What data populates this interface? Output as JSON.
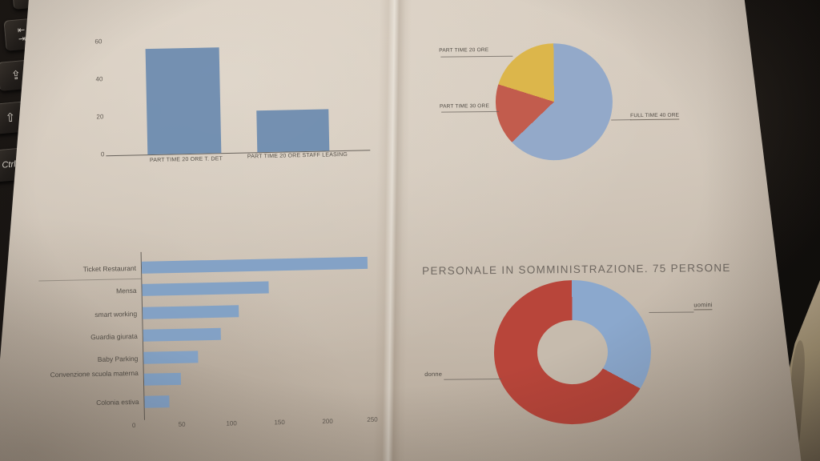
{
  "palette": {
    "paper": "#cdc2b4",
    "background": "#15110e",
    "ink": "#4e4942",
    "table_surface": "#a89878"
  },
  "keyboard": {
    "keys": [
      {
        "name": "partial-key",
        "label": ""
      },
      {
        "name": "tab-key",
        "glyph_top": "⇤",
        "glyph_bottom": "⇥"
      },
      {
        "name": "caps-lock-key",
        "glyph": "⇪"
      },
      {
        "name": "shift-key",
        "glyph": "⇧"
      },
      {
        "name": "ctrl-key",
        "label": "Ctrl"
      }
    ]
  },
  "chart_data": [
    {
      "type": "bar",
      "orientation": "vertical",
      "categories": [
        "PART TIME 20 ORE T. DET",
        "PART TIME 20 ORE STAFF LEASING"
      ],
      "values": [
        56,
        22
      ],
      "yticks": [
        0,
        20,
        40,
        60
      ],
      "ylim": [
        0,
        60
      ],
      "bar_color": "#6e8cb0"
    },
    {
      "type": "pie",
      "labels": [
        "FULL TIME 40 ORE",
        "PART TIME 30 ORE",
        "PART TIME 20 ORE"
      ],
      "values_percent": [
        63,
        17,
        20
      ],
      "colors": [
        "#93a9c9",
        "#c25c4d",
        "#dcb64b"
      ]
    },
    {
      "type": "bar",
      "orientation": "horizontal",
      "categories": [
        "Ticket Restaurant",
        "Mensa",
        "smart working",
        "Guardia giurata",
        "Baby Parking",
        "Convenzione scuola materna",
        "Colonia estiva"
      ],
      "values": [
        247,
        139,
        105,
        85,
        60,
        40,
        27
      ],
      "xticks": [
        0,
        50,
        100,
        150,
        200,
        250
      ],
      "xlim": [
        0,
        250
      ],
      "bar_color": "#7fa0c6"
    },
    {
      "type": "donut",
      "title": "PERSONALE IN SOMMINISTRAZIONE. 75 PERSONE",
      "labels": [
        "uomini",
        "donne"
      ],
      "values_percent": [
        33,
        67
      ],
      "total": 75,
      "colors": [
        "#8ba8cd",
        "#b8453a"
      ]
    }
  ]
}
